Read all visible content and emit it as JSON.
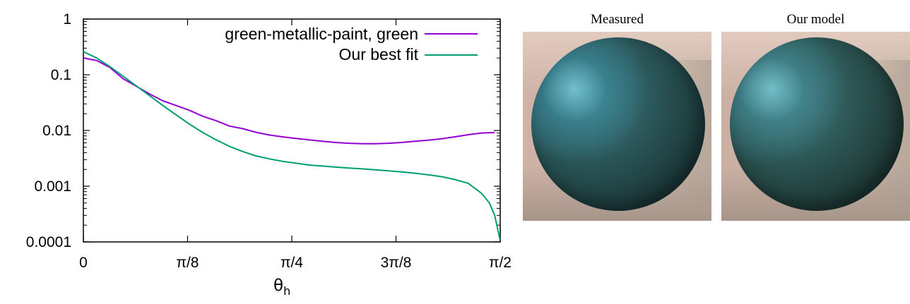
{
  "chart_data": {
    "type": "line",
    "xlabel_main": "θ",
    "xlabel_sub": "h",
    "ylabel": "",
    "y_scale": "log",
    "ylim": [
      0.0001,
      1
    ],
    "xlim": [
      0,
      1.5708
    ],
    "x_ticks": [
      {
        "value": 0,
        "label": "0"
      },
      {
        "value": 0.3927,
        "label": "π/8"
      },
      {
        "value": 0.7854,
        "label": "π/4"
      },
      {
        "value": 1.1781,
        "label": "3π/8"
      },
      {
        "value": 1.5708,
        "label": "π/2"
      }
    ],
    "y_ticks": [
      {
        "value": 1,
        "label": "1"
      },
      {
        "value": 0.1,
        "label": "0.1"
      },
      {
        "value": 0.01,
        "label": "0.01"
      },
      {
        "value": 0.001,
        "label": "0.001"
      },
      {
        "value": 0.0001,
        "label": "0.0001"
      }
    ],
    "legend_position": "top-right",
    "series": [
      {
        "name": "green-metallic-paint, green",
        "color": "#9400d3",
        "x": [
          0,
          0.05,
          0.1,
          0.15,
          0.2,
          0.25,
          0.3,
          0.35,
          0.4,
          0.45,
          0.5,
          0.55,
          0.6,
          0.65,
          0.7,
          0.75,
          0.8,
          0.85,
          0.9,
          0.95,
          1.0,
          1.05,
          1.1,
          1.15,
          1.2,
          1.25,
          1.3,
          1.35,
          1.4,
          1.45,
          1.5,
          1.55
        ],
        "y": [
          0.2,
          0.18,
          0.135,
          0.085,
          0.062,
          0.045,
          0.034,
          0.028,
          0.023,
          0.018,
          0.015,
          0.012,
          0.0108,
          0.0093,
          0.0083,
          0.0077,
          0.0072,
          0.0068,
          0.0064,
          0.0061,
          0.0059,
          0.0058,
          0.0058,
          0.0059,
          0.0061,
          0.0064,
          0.0067,
          0.0071,
          0.0077,
          0.0084,
          0.009,
          0.0092
        ]
      },
      {
        "name": "Our best fit",
        "color": "#009e73",
        "x": [
          0,
          0.05,
          0.1,
          0.15,
          0.2,
          0.25,
          0.3,
          0.35,
          0.4,
          0.45,
          0.5,
          0.55,
          0.6,
          0.65,
          0.7,
          0.75,
          0.8,
          0.85,
          0.9,
          0.95,
          1.0,
          1.05,
          1.1,
          1.15,
          1.2,
          1.25,
          1.3,
          1.35,
          1.4,
          1.45,
          1.5,
          1.53,
          1.55,
          1.57
        ],
        "y": [
          0.26,
          0.2,
          0.14,
          0.094,
          0.063,
          0.042,
          0.028,
          0.019,
          0.013,
          0.0092,
          0.0068,
          0.0052,
          0.0042,
          0.0035,
          0.0031,
          0.0028,
          0.0026,
          0.0024,
          0.0023,
          0.0022,
          0.00212,
          0.00205,
          0.00197,
          0.00189,
          0.0018,
          0.00171,
          0.0016,
          0.00148,
          0.00132,
          0.00113,
          0.00075,
          0.0005,
          0.0003,
          0.00011
        ]
      }
    ]
  },
  "panels": {
    "measured_title": "Measured",
    "model_title": "Our model"
  }
}
